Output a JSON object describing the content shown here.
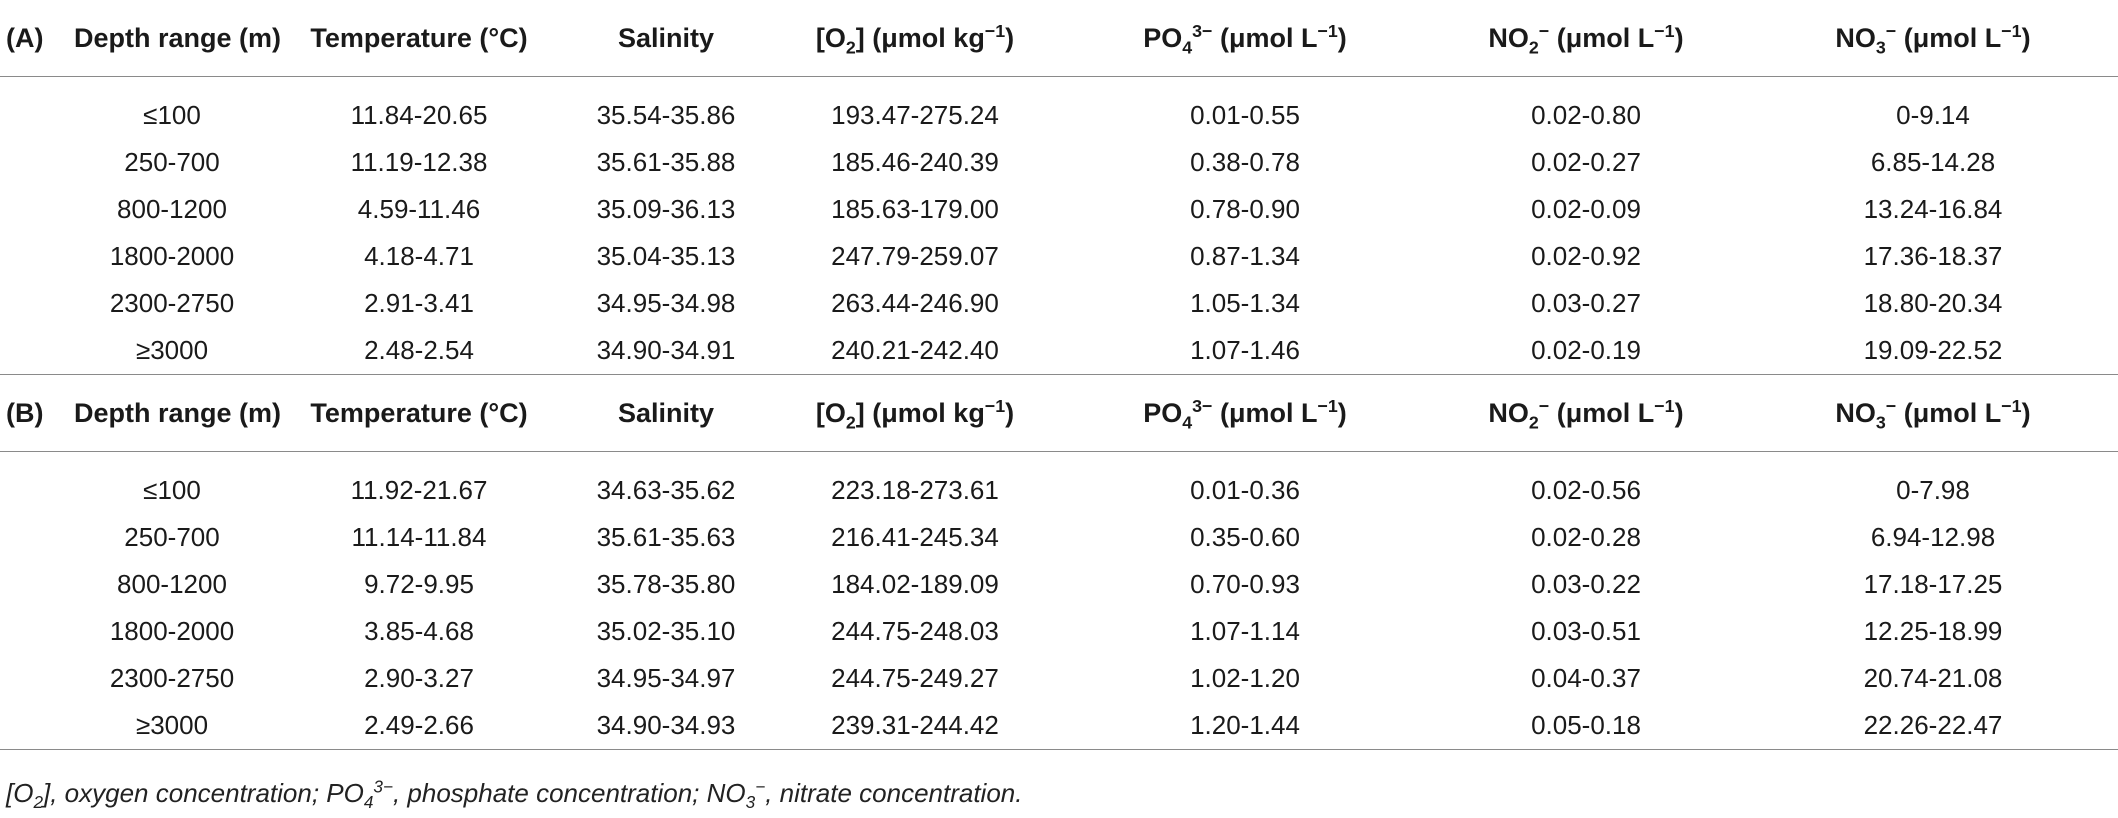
{
  "table": {
    "panels": [
      {
        "label": "(A)",
        "rows": [
          {
            "depth": "≤100",
            "temp": "11.84-20.65",
            "sal": "35.54-35.86",
            "o2": "193.47-275.24",
            "po4": "0.01-0.55",
            "no2": "0.02-0.80",
            "no3": "0-9.14"
          },
          {
            "depth": "250-700",
            "temp": "11.19-12.38",
            "sal": "35.61-35.88",
            "o2": "185.46-240.39",
            "po4": "0.38-0.78",
            "no2": "0.02-0.27",
            "no3": "6.85-14.28"
          },
          {
            "depth": "800-1200",
            "temp": "4.59-11.46",
            "sal": "35.09-36.13",
            "o2": "185.63-179.00",
            "po4": "0.78-0.90",
            "no2": "0.02-0.09",
            "no3": "13.24-16.84"
          },
          {
            "depth": "1800-2000",
            "temp": "4.18-4.71",
            "sal": "35.04-35.13",
            "o2": "247.79-259.07",
            "po4": "0.87-1.34",
            "no2": "0.02-0.92",
            "no3": "17.36-18.37"
          },
          {
            "depth": "2300-2750",
            "temp": "2.91-3.41",
            "sal": "34.95-34.98",
            "o2": "263.44-246.90",
            "po4": "1.05-1.34",
            "no2": "0.03-0.27",
            "no3": "18.80-20.34"
          },
          {
            "depth": "≥3000",
            "temp": "2.48-2.54",
            "sal": "34.90-34.91",
            "o2": "240.21-242.40",
            "po4": "1.07-1.46",
            "no2": "0.02-0.19",
            "no3": "19.09-22.52"
          }
        ]
      },
      {
        "label": "(B)",
        "rows": [
          {
            "depth": "≤100",
            "temp": "11.92-21.67",
            "sal": "34.63-35.62",
            "o2": "223.18-273.61",
            "po4": "0.01-0.36",
            "no2": "0.02-0.56",
            "no3": "0-7.98"
          },
          {
            "depth": "250-700",
            "temp": "11.14-11.84",
            "sal": "35.61-35.63",
            "o2": "216.41-245.34",
            "po4": "0.35-0.60",
            "no2": "0.02-0.28",
            "no3": "6.94-12.98"
          },
          {
            "depth": "800-1200",
            "temp": "9.72-9.95",
            "sal": "35.78-35.80",
            "o2": "184.02-189.09",
            "po4": "0.70-0.93",
            "no2": "0.03-0.22",
            "no3": "17.18-17.25"
          },
          {
            "depth": "1800-2000",
            "temp": "3.85-4.68",
            "sal": "35.02-35.10",
            "o2": "244.75-248.03",
            "po4": "1.07-1.14",
            "no2": "0.03-0.51",
            "no3": "12.25-18.99"
          },
          {
            "depth": "2300-2750",
            "temp": "2.90-3.27",
            "sal": "34.95-34.97",
            "o2": "244.75-249.27",
            "po4": "1.02-1.20",
            "no2": "0.04-0.37",
            "no3": "20.74-21.08"
          },
          {
            "depth": "≥3000",
            "temp": "2.49-2.66",
            "sal": "34.90-34.93",
            "o2": "239.31-244.42",
            "po4": "1.20-1.44",
            "no2": "0.05-0.18",
            "no3": "22.26-22.47"
          }
        ]
      }
    ],
    "headers": {
      "depth": "Depth range (m)",
      "temp": "Temperature (°C)",
      "sal": "Salinity",
      "o2_open": "[O",
      "o2_sub": "2",
      "o2_close": "] (μmol kg",
      "o2_sup": "−1",
      "o2_end": ")",
      "po4_main": "PO",
      "po4_sub": "4",
      "po4_sup": "3−",
      "po4_unit": "(μmol L",
      "po4_unit_sup": "−1",
      "po4_end": ")",
      "no2_main": "NO",
      "no2_sub": "2",
      "no2_sup": "−",
      "no2_unit": "(μmol L",
      "no2_unit_sup": "−1",
      "no2_end": ")",
      "no3_main": "NO",
      "no3_sub": "3",
      "no3_sup": "−",
      "no3_unit": "(μmol L",
      "no3_unit_sup": "−1",
      "no3_end": ")"
    }
  },
  "footnote": {
    "t1": "[O",
    "s1": "2",
    "t2": "], oxygen concentration; PO",
    "s2": "4",
    "p2": "3−",
    "t3": ", phosphate concentration; NO",
    "s3": "3",
    "p3": "−",
    "t4": ", nitrate concentration."
  }
}
